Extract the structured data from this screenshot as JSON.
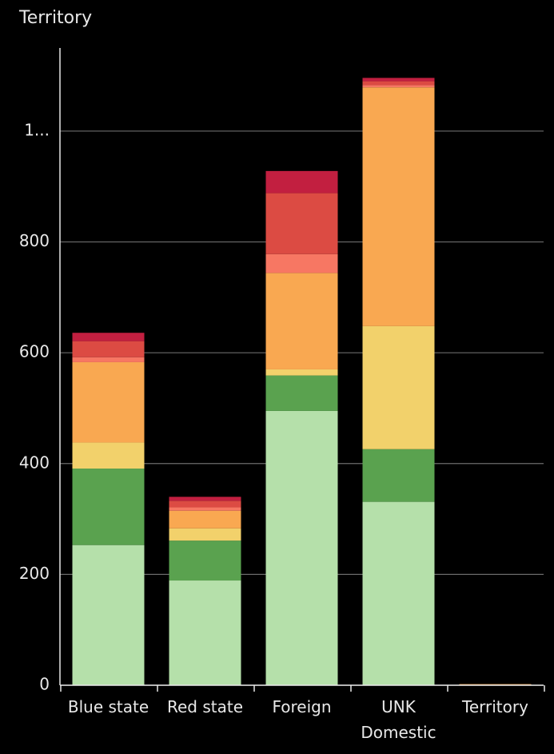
{
  "chart_data": {
    "type": "stacked_bar",
    "title": "Territory",
    "categories": [
      "Blue state",
      "Red state",
      "Foreign",
      "UNK Domestic",
      "Territory"
    ],
    "series": [
      {
        "color": "#b5e0aa",
        "values": [
          253,
          189,
          495,
          331,
          0
        ]
      },
      {
        "color": "#5aa24f",
        "values": [
          138,
          72,
          64,
          95,
          0
        ]
      },
      {
        "color": "#f2d16b",
        "values": [
          47,
          22,
          11,
          222,
          0
        ]
      },
      {
        "color": "#f9a851",
        "values": [
          145,
          32,
          174,
          431,
          2
        ]
      },
      {
        "color": "#f77763",
        "values": [
          9,
          6,
          34,
          4,
          0
        ]
      },
      {
        "color": "#dc4b43",
        "values": [
          29,
          12,
          110,
          7,
          0
        ]
      },
      {
        "color": "#c21f40",
        "values": [
          15,
          7,
          40,
          6,
          0
        ]
      }
    ],
    "ylim": [
      0,
      1150
    ],
    "yticks": [
      0,
      200,
      400,
      600,
      800,
      {
        "value": 1000,
        "label": "1..."
      }
    ],
    "grid": true
  }
}
